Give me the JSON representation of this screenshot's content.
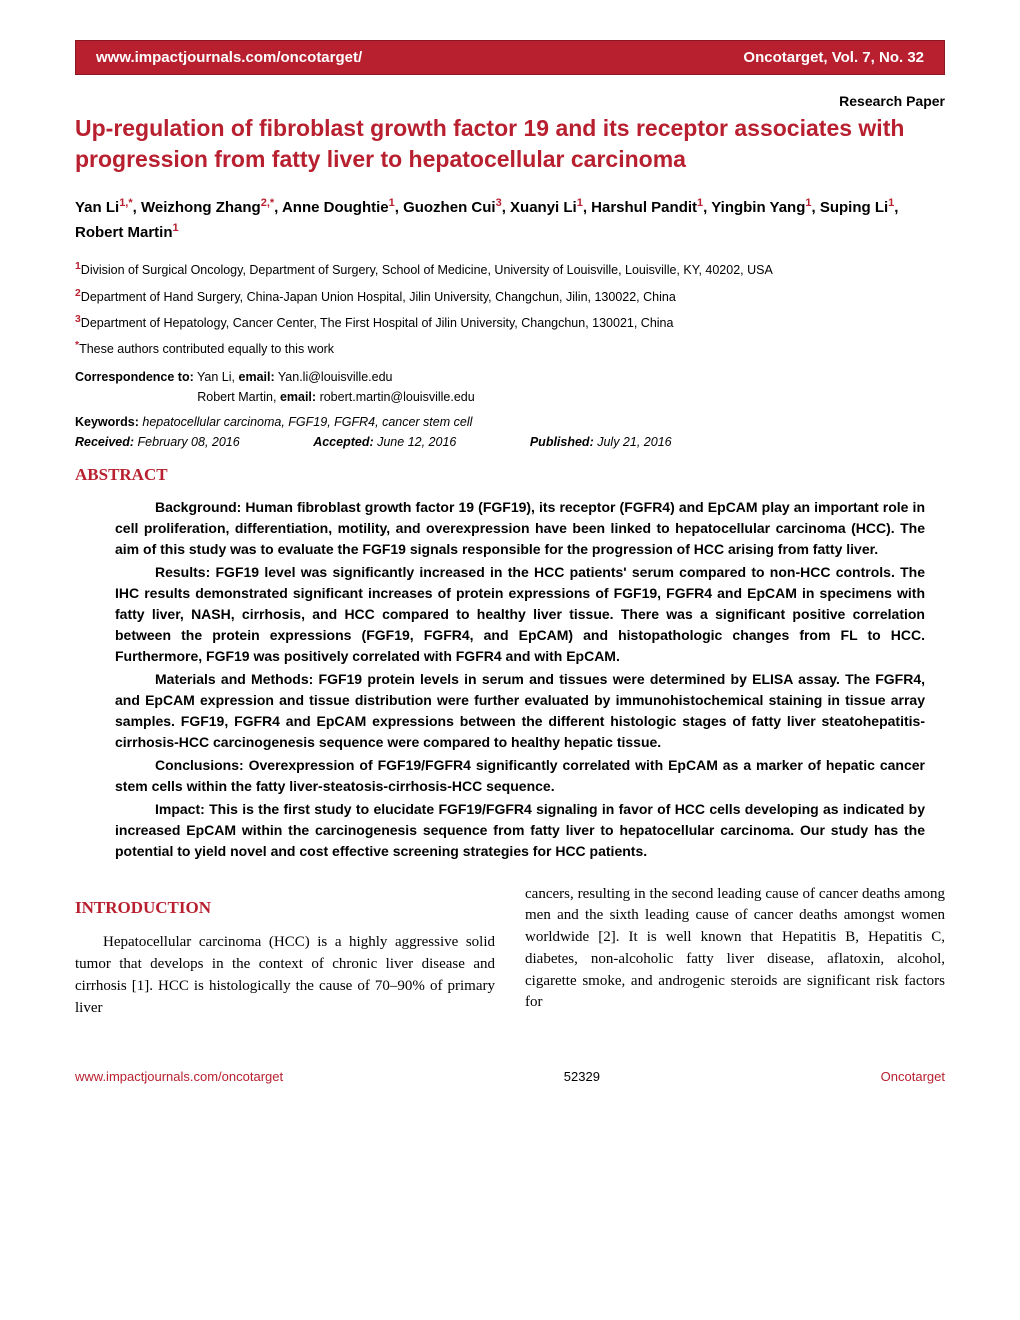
{
  "header": {
    "left": "www.impactjournals.com/oncotarget/",
    "right": "Oncotarget, Vol. 7, No. 32"
  },
  "paper_type": "Research Paper",
  "title": "Up-regulation of fibroblast growth factor 19 and its receptor associates with progression from fatty liver to hepatocellular carcinoma",
  "authors_html": "Yan Li<sup>1,*</sup>, Weizhong Zhang<sup>2,*</sup>, Anne Doughtie<sup>1</sup>, Guozhen Cui<sup>3</sup>, Xuanyi Li<sup>1</sup>, Harshul Pandit<sup>1</sup>, Yingbin Yang<sup>1</sup>, Suping Li<sup>1</sup>, Robert Martin<sup>1</sup>",
  "affiliations": [
    {
      "n": "1",
      "text": "Division of Surgical Oncology, Department of Surgery, School of Medicine, University of Louisville, Louisville, KY, 40202, USA"
    },
    {
      "n": "2",
      "text": "Department of Hand Surgery, China-Japan Union Hospital, Jilin University, Changchun, Jilin, 130022, China"
    },
    {
      "n": "3",
      "text": "Department of Hepatology, Cancer Center, The First Hospital of Jilin University, Changchun, 130021, China"
    },
    {
      "n": "*",
      "text": "These authors contributed equally to this work"
    }
  ],
  "correspondence": {
    "label": "Correspondence to:",
    "lines": [
      {
        "name": "Yan Li,",
        "elabel": "email:",
        "email": "Yan.li@louisville.edu"
      },
      {
        "name": "Robert Martin,",
        "elabel": "email:",
        "email": "robert.martin@louisville.edu"
      }
    ]
  },
  "keywords": {
    "label": "Keywords:",
    "value": "hepatocellular carcinoma, FGF19, FGFR4, cancer stem cell"
  },
  "dates": {
    "received": {
      "label": "Received:",
      "value": "February 08, 2016"
    },
    "accepted": {
      "label": "Accepted:",
      "value": "June 12, 2016"
    },
    "published": {
      "label": "Published:",
      "value": "July 21, 2016"
    }
  },
  "abstract_heading": "ABSTRACT",
  "abstract": [
    "Background: Human fibroblast growth factor 19 (FGF19), its receptor (FGFR4) and EpCAM play an important role in cell proliferation, differentiation, motility, and overexpression have been linked to hepatocellular carcinoma (HCC). The aim of this study was to evaluate the FGF19 signals responsible for the progression of HCC arising from fatty liver.",
    "Results: FGF19 level was significantly increased in the HCC patients' serum compared to non-HCC controls. The IHC results demonstrated significant increases of protein expressions of FGF19, FGFR4 and EpCAM in specimens with fatty liver, NASH, cirrhosis, and HCC compared to healthy liver tissue. There was a significant positive correlation between the protein expressions (FGF19, FGFR4, and EpCAM) and histopathologic changes from FL to HCC. Furthermore, FGF19 was positively correlated with FGFR4 and with EpCAM.",
    "Materials and Methods: FGF19 protein levels in serum and tissues were determined by ELISA assay. The FGFR4, and EpCAM expression and tissue distribution were further evaluated by immunohistochemical staining in tissue array samples. FGF19, FGFR4 and EpCAM expressions between the different histologic stages of fatty liver steatohepatitis-cirrhosis-HCC carcinogenesis sequence were compared to healthy hepatic tissue.",
    "Conclusions: Overexpression of FGF19/FGFR4 significantly correlated with EpCAM as a marker of hepatic cancer stem cells within the fatty liver-steatosis-cirrhosis-HCC sequence.",
    "Impact: This is the first study to elucidate FGF19/FGFR4 signaling in favor of HCC cells developing as indicated by increased EpCAM within the carcinogenesis sequence from fatty liver to hepatocellular carcinoma. Our study has the potential to yield novel and cost effective screening strategies for HCC patients."
  ],
  "intro_heading": "INTRODUCTION",
  "intro_col1": "Hepatocellular carcinoma (HCC) is a highly aggressive solid tumor that develops in the context of chronic liver disease and cirrhosis [1]. HCC is histologically the cause of 70–90% of primary liver",
  "intro_col2": "cancers, resulting in the second leading cause of cancer deaths among men and the sixth leading cause of cancer deaths amongst women worldwide [2]. It is well known that Hepatitis B, Hepatitis C, diabetes, non-alcoholic fatty liver disease, aflatoxin, alcohol, cigarette smoke, and androgenic steroids are significant risk factors for",
  "footer": {
    "left": "www.impactjournals.com/oncotarget",
    "mid": "52329",
    "right": "Oncotarget"
  },
  "colors": {
    "brand": "#b8202f",
    "text": "#000000",
    "bg": "#ffffff"
  }
}
